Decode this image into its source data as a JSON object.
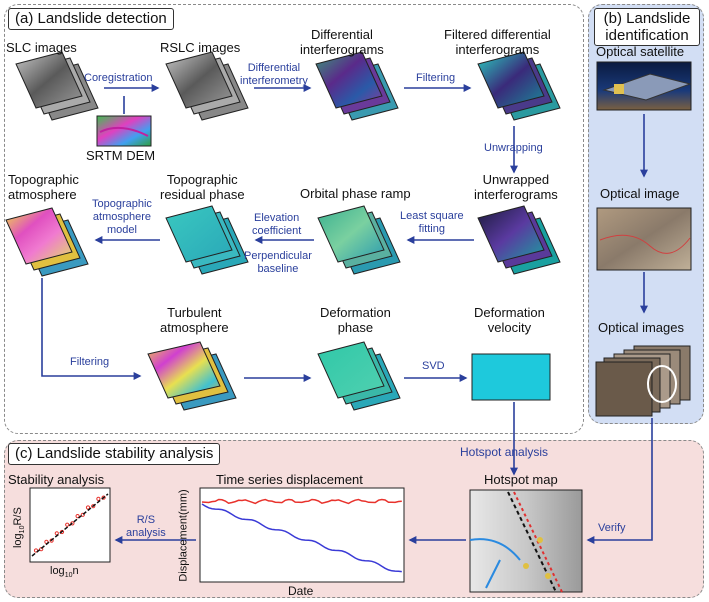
{
  "panels": {
    "a": {
      "title": "(a) Landslide detection"
    },
    "b": {
      "title_line1": "(b) Landslide",
      "title_line2": "identification"
    },
    "c": {
      "title": "(c) Landslide stability analysis"
    }
  },
  "nodes": {
    "slc": "SLC images",
    "rslc": "RSLC images",
    "diff_l1": "Differential",
    "diff_l2": "interferograms",
    "fdiff_l1": "Filtered differential",
    "fdiff_l2": "interferograms",
    "srtm": "SRTM DEM",
    "unw_l1": "Unwrapped",
    "unw_l2": "interferograms",
    "orbital": "Orbital phase ramp",
    "topores_l1": "Topographic",
    "topores_l2": "residual phase",
    "topoatm_l1": "Topographic",
    "topoatm_l2": "atmosphere",
    "turb_l1": "Turbulent",
    "turb_l2": "atmosphere",
    "defph_l1": "Deformation",
    "defph_l2": "phase",
    "defvel_l1": "Deformation",
    "defvel_l2": "velocity",
    "optsat": "Optical satellite",
    "optimg": "Optical image",
    "optimgs": "Optical images",
    "hotspot_map": "Hotspot map",
    "ts_disp": "Time series displacement",
    "stab": "Stability analysis"
  },
  "arrows": {
    "coreg": "Coregistration",
    "diffint_l1": "Differential",
    "diffint_l2": "interferometry",
    "filtering": "Filtering",
    "unwrapping": "Unwrapping",
    "lsq_l1": "Least square",
    "lsq_l2": "fitting",
    "elev_l1": "Elevation",
    "elev_l2": "coefficient",
    "perp_l1": "Perpendicular",
    "perp_l2": "baseline",
    "topomodel_l1": "Topographic",
    "topomodel_l2": "atmosphere",
    "topomodel_l3": "model",
    "filtering2": "Filtering",
    "svd": "SVD",
    "hotspot": "Hotspot analysis",
    "verify": "Verify",
    "rs_l1": "R/S",
    "rs_l2": "analysis"
  },
  "ts_chart": {
    "ylabel": "Displacement(mm)",
    "xlabel": "Date"
  },
  "rs_chart": {
    "ylabel_base": "log",
    "ylabel_sub": "10",
    "ylabel_rest": "R/S",
    "xlabel_base": "log",
    "xlabel_sub": "10",
    "xlabel_rest": "n"
  },
  "colors": {
    "arrow": "#2a3f9c",
    "panel_b_bg": "#d2def4",
    "panel_c_bg": "#f6dedd",
    "velocity_map": "#1ec9dc",
    "series_red": "#e8322c",
    "series_blue": "#3a3ad6"
  }
}
